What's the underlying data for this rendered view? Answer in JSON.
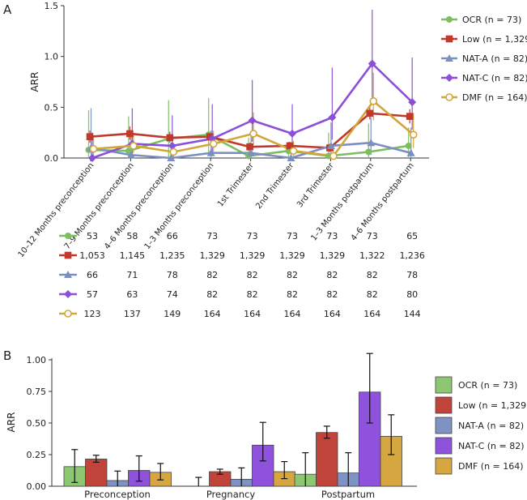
{
  "figure": {
    "panel_a_label": "A",
    "panel_b_label": "B"
  },
  "chart_data": [
    {
      "type": "line",
      "ylabel": "ARR",
      "ylim": [
        0,
        1.5
      ],
      "yticks": [
        "0.0",
        "0.5",
        "1.0",
        "1.5"
      ],
      "categories": [
        "10–12 Months preconception",
        "7–9 Months preconception",
        "4–6 Months preconception",
        "1–3 Months preconception",
        "1st Trimester",
        "2nd Trimester",
        "3rd Trimester",
        "1–3 Months postpartum",
        "4–6 Months postpartum"
      ],
      "legend_position": "right",
      "series": [
        {
          "name": "OCR (n = 73)",
          "color": "#7dbe61",
          "marker": "circle",
          "values": [
            0.08,
            0.07,
            0.19,
            0.23,
            0.02,
            0.07,
            0.02,
            0.06,
            0.12
          ],
          "err_low": [
            0.0,
            0.0,
            0.0,
            0.05,
            0.0,
            0.0,
            0.0,
            0.0,
            0.0
          ],
          "err_high": [
            0.47,
            0.41,
            0.57,
            0.59,
            0.2,
            0.16,
            0.25,
            0.34,
            0.3
          ]
        },
        {
          "name": "Low (n = 1,329)",
          "color": "#c0392b",
          "marker": "square",
          "values": [
            0.21,
            0.24,
            0.2,
            0.21,
            0.11,
            0.12,
            0.1,
            0.44,
            0.41
          ],
          "err_low": [
            0.15,
            0.18,
            0.15,
            0.17,
            0.07,
            0.08,
            0.06,
            0.38,
            0.34
          ],
          "err_high": [
            0.27,
            0.31,
            0.26,
            0.26,
            0.15,
            0.16,
            0.14,
            0.5,
            0.48
          ]
        },
        {
          "name": "NAT-A (n = 82)",
          "color": "#7b8fc1",
          "marker": "triangle",
          "values": [
            0.1,
            0.03,
            0.0,
            0.05,
            0.05,
            0.0,
            0.12,
            0.15,
            0.05
          ],
          "err_low": [
            0.0,
            0.0,
            0.0,
            0.0,
            0.0,
            0.0,
            0.02,
            0.03,
            0.0
          ],
          "err_high": [
            0.49,
            0.25,
            0.15,
            0.27,
            0.23,
            0.1,
            0.35,
            0.4,
            0.3
          ]
        },
        {
          "name": "NAT-C (n = 82)",
          "color": "#8b4fd8",
          "marker": "diamond",
          "values": [
            0.0,
            0.14,
            0.12,
            0.19,
            0.37,
            0.24,
            0.4,
            0.93,
            0.55
          ],
          "err_low": [
            0.0,
            0.02,
            0.01,
            0.05,
            0.16,
            0.08,
            0.18,
            0.59,
            0.28
          ],
          "err_high": [
            0.25,
            0.49,
            0.42,
            0.53,
            0.77,
            0.53,
            0.89,
            1.46,
            0.99
          ]
        },
        {
          "name": "DMF (n = 164)",
          "color": "#d4a53b",
          "marker": "open-circle",
          "values": [
            0.09,
            0.12,
            0.06,
            0.14,
            0.24,
            0.07,
            0.02,
            0.56,
            0.23
          ],
          "err_low": [
            0.02,
            0.05,
            0.01,
            0.06,
            0.13,
            0.02,
            0.0,
            0.37,
            0.1
          ],
          "err_high": [
            0.2,
            0.24,
            0.14,
            0.27,
            0.45,
            0.17,
            0.1,
            0.84,
            0.44
          ]
        }
      ],
      "counts_table": [
        [
          "53",
          "58",
          "66",
          "73",
          "73",
          "73",
          "73",
          "73",
          "65"
        ],
        [
          "1,053",
          "1,145",
          "1,235",
          "1,329",
          "1,329",
          "1,329",
          "1,329",
          "1,322",
          "1,236"
        ],
        [
          "66",
          "71",
          "78",
          "82",
          "82",
          "82",
          "82",
          "82",
          "78"
        ],
        [
          "57",
          "63",
          "74",
          "82",
          "82",
          "82",
          "82",
          "82",
          "80"
        ],
        [
          "123",
          "137",
          "149",
          "164",
          "164",
          "164",
          "164",
          "164",
          "144"
        ]
      ]
    },
    {
      "type": "bar",
      "ylabel": "ARR",
      "ylim": [
        0,
        1.0
      ],
      "yticks": [
        "0.00",
        "0.25",
        "0.50",
        "0.75",
        "1.00"
      ],
      "categories": [
        "Preconception",
        "Pregnancy",
        "Postpartum"
      ],
      "legend_position": "right",
      "series": [
        {
          "name": "OCR (n = 73)",
          "color": "#8ec772",
          "values": [
            0.155,
            0.0,
            0.095
          ],
          "err_low": [
            0.03,
            0.0,
            0.0
          ],
          "err_high": [
            0.29,
            0.07,
            0.265
          ]
        },
        {
          "name": "Low (n = 1,329)",
          "color": "#c0443a",
          "values": [
            0.215,
            0.115,
            0.425
          ],
          "err_low": [
            0.19,
            0.095,
            0.38
          ],
          "err_high": [
            0.245,
            0.135,
            0.475
          ]
        },
        {
          "name": "NAT-A (n = 82)",
          "color": "#7e92c3",
          "values": [
            0.045,
            0.055,
            0.105
          ],
          "err_low": [
            0.0,
            0.0,
            0.0
          ],
          "err_high": [
            0.12,
            0.145,
            0.265
          ]
        },
        {
          "name": "NAT-C (n = 82)",
          "color": "#8e52dc",
          "values": [
            0.125,
            0.325,
            0.745
          ],
          "err_low": [
            0.04,
            0.2,
            0.5
          ],
          "err_high": [
            0.24,
            0.505,
            1.05
          ]
        },
        {
          "name": "DMF (n = 164)",
          "color": "#d6a640",
          "values": [
            0.11,
            0.115,
            0.395
          ],
          "err_low": [
            0.05,
            0.06,
            0.25
          ],
          "err_high": [
            0.18,
            0.195,
            0.565
          ]
        }
      ]
    }
  ]
}
